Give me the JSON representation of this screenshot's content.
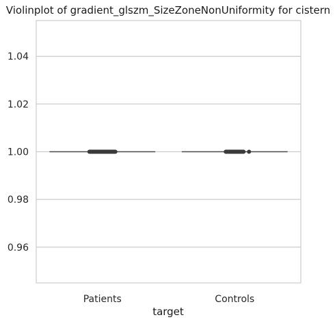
{
  "chart_data": {
    "type": "violin",
    "title": "Violinplot of gradient_glszm_SizeZoneNonUniformity for cistern",
    "xlabel": "target",
    "ylabel": "",
    "categories": [
      "Patients",
      "Controls"
    ],
    "ylim": [
      0.945,
      1.055
    ],
    "yticks": [
      0.96,
      0.98,
      1.0,
      1.02,
      1.04
    ],
    "ytick_labels": [
      "0.96",
      "0.98",
      "1.00",
      "1.02",
      "1.04"
    ],
    "grid": true,
    "series": [
      {
        "category": "Patients",
        "median": 1.0,
        "q1": 1.0,
        "q3": 1.0,
        "min": 1.0,
        "max": 1.0
      },
      {
        "category": "Controls",
        "median": 1.0,
        "q1": 1.0,
        "q3": 1.0,
        "min": 1.0,
        "max": 1.0
      }
    ],
    "colors": {
      "grid": "#cccccc",
      "frame": "#cccccc",
      "violin": "#4d4d4d",
      "box": "#3a3a3a"
    }
  }
}
